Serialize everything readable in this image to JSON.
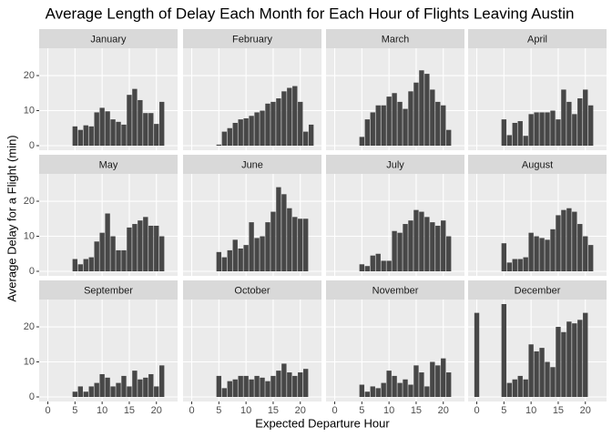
{
  "chart_data": {
    "type": "bar",
    "title": "Average Length of Delay Each Month for Each Hour of Flights Leaving Austin",
    "x_label": "Expected Departure Hour",
    "y_label": "Average Delay for a Flight (min)",
    "color": "#474747",
    "xlim": [
      -1.6,
      23.9
    ],
    "xticks": [
      0,
      5,
      10,
      15,
      20
    ],
    "ylim": [
      -1.3,
      27.8
    ],
    "yticks": [
      0,
      10,
      20
    ],
    "grid": true,
    "facets": [
      {
        "title": "January",
        "x": [
          5,
          6,
          7,
          8,
          9,
          10,
          11,
          12,
          13,
          14,
          15,
          16,
          17,
          18,
          19,
          20,
          21
        ],
        "values": [
          5.5,
          4.5,
          5.8,
          5.5,
          9.5,
          10.8,
          9.8,
          7.5,
          6.8,
          6,
          14.5,
          16.2,
          13,
          9.3,
          9.3,
          6.2,
          12.5
        ]
      },
      {
        "title": "February",
        "x": [
          5,
          6,
          7,
          8,
          9,
          10,
          11,
          12,
          13,
          14,
          15,
          16,
          17,
          18,
          19,
          20,
          21,
          22
        ],
        "values": [
          0.3,
          4,
          5,
          6.5,
          7.5,
          7.8,
          8.5,
          9.5,
          10,
          12,
          12.5,
          13.5,
          15.5,
          16.5,
          17,
          12.5,
          4,
          6
        ]
      },
      {
        "title": "March",
        "x": [
          5,
          6,
          7,
          8,
          9,
          10,
          11,
          12,
          13,
          14,
          15,
          16,
          17,
          18,
          19,
          20,
          21
        ],
        "values": [
          2.5,
          7.5,
          9.5,
          11.5,
          11.5,
          14,
          15,
          12.5,
          10.5,
          15.5,
          18,
          21.5,
          20.5,
          16,
          12.5,
          11.5,
          4.5
        ]
      },
      {
        "title": "April",
        "x": [
          5,
          6,
          7,
          8,
          9,
          10,
          11,
          12,
          13,
          14,
          15,
          16,
          17,
          18,
          19,
          20,
          21
        ],
        "values": [
          7.5,
          3,
          6.5,
          7,
          2.8,
          9,
          9.5,
          9.5,
          9.5,
          10,
          7.5,
          16,
          12.5,
          9,
          13.5,
          16,
          11.5
        ]
      },
      {
        "title": "May",
        "x": [
          5,
          6,
          7,
          8,
          9,
          10,
          11,
          12,
          13,
          14,
          15,
          16,
          17,
          18,
          19,
          20,
          21
        ],
        "values": [
          3.5,
          2,
          3.5,
          4,
          8.5,
          11,
          16.5,
          10,
          6,
          6,
          12.5,
          13.5,
          14.5,
          15.5,
          13,
          13,
          10
        ]
      },
      {
        "title": "June",
        "x": [
          5,
          6,
          7,
          8,
          9,
          10,
          11,
          12,
          13,
          14,
          15,
          16,
          17,
          18,
          19,
          20,
          21
        ],
        "values": [
          5.5,
          4,
          6,
          9,
          6.5,
          7.5,
          14,
          9.5,
          10,
          14,
          17,
          24,
          22,
          18,
          15.5,
          15,
          15
        ]
      },
      {
        "title": "July",
        "x": [
          5,
          6,
          7,
          8,
          9,
          10,
          11,
          12,
          13,
          14,
          15,
          16,
          17,
          18,
          19,
          20,
          21
        ],
        "values": [
          2,
          1.5,
          4.5,
          5,
          3,
          3,
          11.5,
          11,
          13.5,
          14.5,
          17.5,
          17,
          15.5,
          14,
          13,
          14.5,
          10
        ]
      },
      {
        "title": "August",
        "x": [
          5,
          6,
          7,
          8,
          9,
          10,
          11,
          12,
          13,
          14,
          15,
          16,
          17,
          18,
          19,
          20,
          21
        ],
        "values": [
          8,
          2.5,
          3.5,
          3.5,
          4,
          11,
          10,
          9.5,
          9,
          12,
          16,
          17.5,
          18,
          17,
          13.5,
          10,
          7.5
        ]
      },
      {
        "title": "September",
        "x": [
          5,
          6,
          7,
          8,
          9,
          10,
          11,
          12,
          13,
          14,
          15,
          16,
          17,
          18,
          19,
          20,
          21
        ],
        "values": [
          1.5,
          3,
          1.5,
          3,
          4,
          6.5,
          5.5,
          3,
          4,
          6,
          3,
          7.5,
          5,
          5.5,
          6.5,
          3,
          9
        ]
      },
      {
        "title": "October",
        "x": [
          5,
          6,
          7,
          8,
          9,
          10,
          11,
          12,
          13,
          14,
          15,
          16,
          17,
          18,
          19,
          20,
          21
        ],
        "values": [
          6,
          2.5,
          4.5,
          5,
          6,
          6,
          5,
          6,
          5.5,
          4.5,
          6,
          7.5,
          9.5,
          7,
          6,
          7,
          8
        ]
      },
      {
        "title": "November",
        "x": [
          5,
          6,
          7,
          8,
          9,
          10,
          11,
          12,
          13,
          14,
          15,
          16,
          17,
          18,
          19,
          20,
          21
        ],
        "values": [
          3.5,
          1.5,
          3,
          2.5,
          4,
          7.5,
          6,
          4,
          5,
          3.5,
          9,
          7,
          3,
          10,
          9,
          11,
          7
        ]
      },
      {
        "title": "December",
        "x": [
          0,
          5,
          6,
          7,
          8,
          9,
          10,
          11,
          12,
          13,
          14,
          15,
          16,
          17,
          18,
          19,
          20
        ],
        "values": [
          24,
          26.5,
          4,
          5,
          6,
          5,
          15,
          13,
          14,
          10,
          8.5,
          20,
          18.5,
          21.5,
          21,
          22,
          24
        ]
      }
    ]
  }
}
